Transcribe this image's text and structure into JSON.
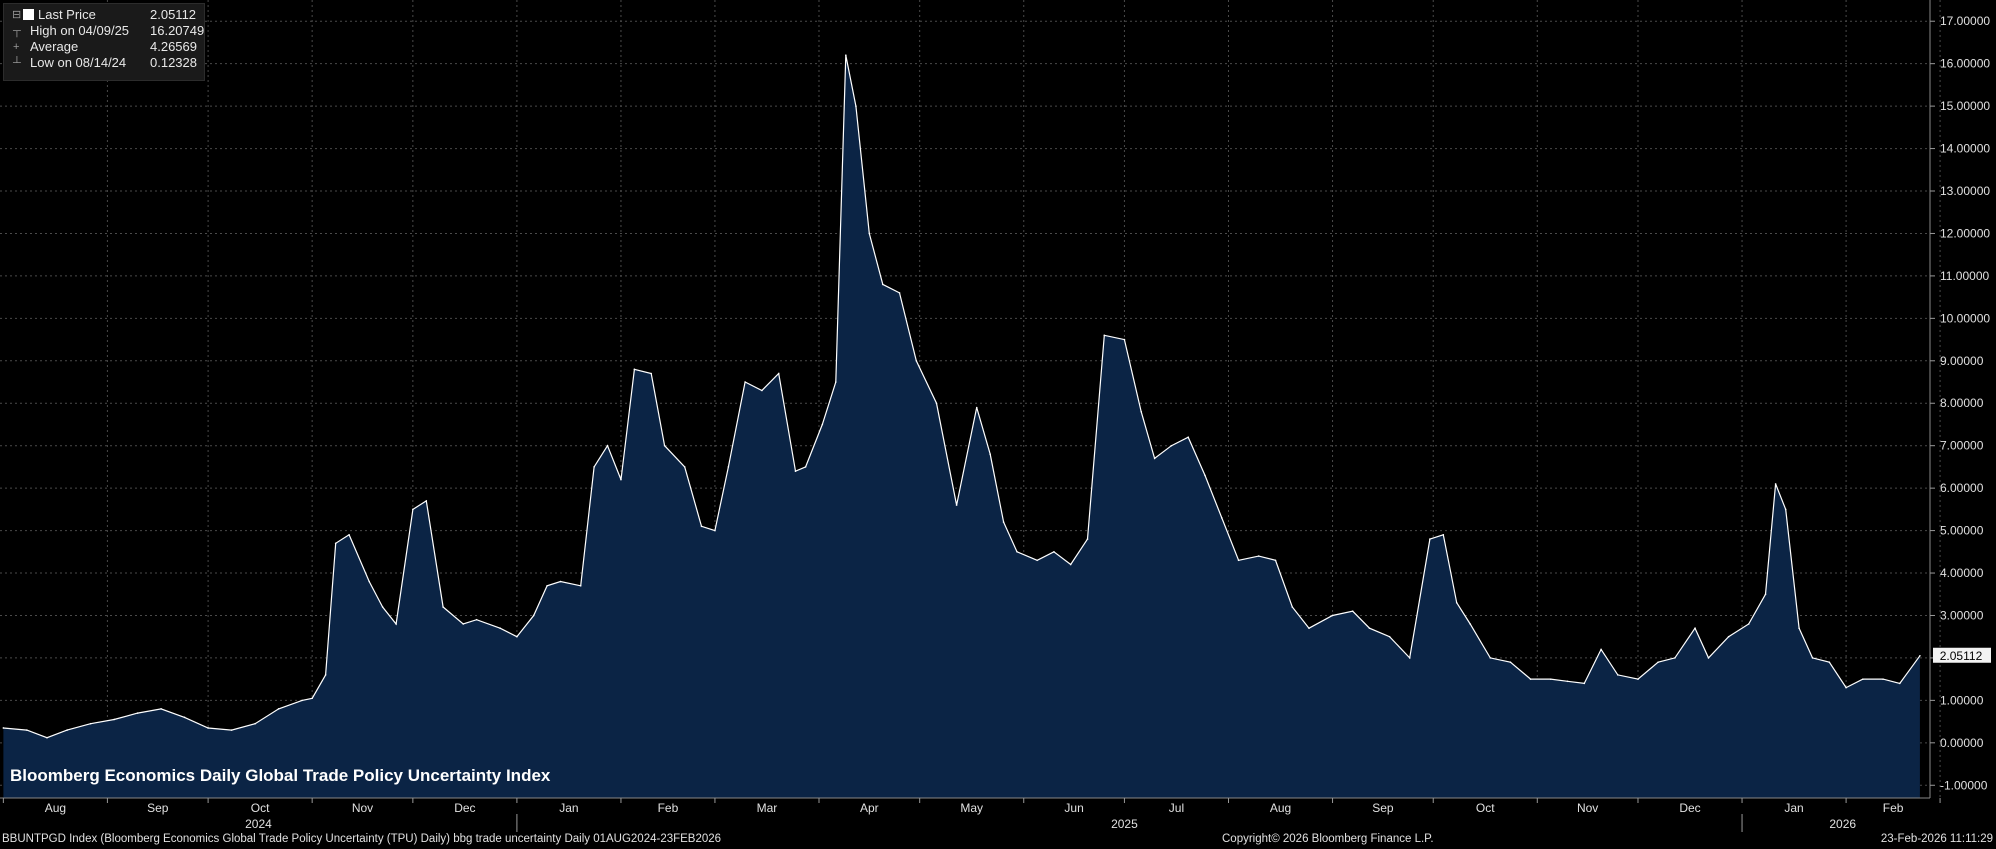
{
  "legend": {
    "last_price_label": "Last Price",
    "last_price_value": "2.05112",
    "high_label": "High on 04/09/25",
    "high_value": "16.20749",
    "average_label": "Average",
    "average_value": "4.26569",
    "low_label": "Low on 08/14/24",
    "low_value": "0.12328"
  },
  "footer": {
    "description": "BBUNTPGD Index (Bloomberg Economics Global Trade Policy Uncertainty (TPU) Daily) bbg trade uncertainty Daily 01AUG2024-23FEB2026",
    "copyright": "Copyright© 2026 Bloomberg Finance L.P.",
    "timestamp": "23-Feb-2026 11:11:29"
  },
  "colors": {
    "background": "#000000",
    "area_fill": "#0b2445",
    "line": "#ffffff",
    "grid": "#5a5a5a"
  },
  "chart_data": {
    "type": "area",
    "title": "Bloomberg Economics Daily Global Trade Policy Uncertainty Index",
    "ylim": [
      -1.3,
      17.5
    ],
    "yticks": [
      -1,
      0,
      1,
      2,
      3,
      4,
      5,
      6,
      7,
      8,
      9,
      10,
      11,
      12,
      13,
      14,
      15,
      16,
      17
    ],
    "ytick_labels": [
      "-1.00000",
      "0.00000",
      "1.00000",
      "2.00000",
      "3.00000",
      "4.00000",
      "5.00000",
      "6.00000",
      "7.00000",
      "8.00000",
      "9.00000",
      "10.00000",
      "11.00000",
      "12.00000",
      "13.00000",
      "14.00000",
      "15.00000",
      "16.00000",
      "17.00000"
    ],
    "last_value_label": "2.05112",
    "month_labels": [
      "Aug",
      "Sep",
      "Oct",
      "Nov",
      "Dec",
      "Jan",
      "Feb",
      "Mar",
      "Apr",
      "May",
      "Jun",
      "Jul",
      "Aug",
      "Sep",
      "Oct",
      "Nov",
      "Dec",
      "Jan",
      "Feb"
    ],
    "year_labels": [
      "2024",
      "2025",
      "2026"
    ],
    "grid": true,
    "x": [
      "2024-08-01",
      "2024-08-08",
      "2024-08-14",
      "2024-08-20",
      "2024-08-27",
      "2024-09-03",
      "2024-09-10",
      "2024-09-17",
      "2024-09-24",
      "2024-10-01",
      "2024-10-08",
      "2024-10-15",
      "2024-10-22",
      "2024-10-29",
      "2024-11-01",
      "2024-11-05",
      "2024-11-08",
      "2024-11-12",
      "2024-11-18",
      "2024-11-22",
      "2024-11-26",
      "2024-12-01",
      "2024-12-05",
      "2024-12-10",
      "2024-12-16",
      "2024-12-20",
      "2024-12-27",
      "2025-01-01",
      "2025-01-06",
      "2025-01-10",
      "2025-01-14",
      "2025-01-20",
      "2025-01-24",
      "2025-01-28",
      "2025-02-01",
      "2025-02-05",
      "2025-02-10",
      "2025-02-14",
      "2025-02-20",
      "2025-02-25",
      "2025-03-01",
      "2025-03-05",
      "2025-03-10",
      "2025-03-15",
      "2025-03-20",
      "2025-03-25",
      "2025-03-28",
      "2025-04-02",
      "2025-04-06",
      "2025-04-09",
      "2025-04-12",
      "2025-04-16",
      "2025-04-20",
      "2025-04-25",
      "2025-04-30",
      "2025-05-06",
      "2025-05-12",
      "2025-05-18",
      "2025-05-22",
      "2025-05-26",
      "2025-05-30",
      "2025-06-05",
      "2025-06-10",
      "2025-06-15",
      "2025-06-20",
      "2025-06-25",
      "2025-07-01",
      "2025-07-06",
      "2025-07-10",
      "2025-07-15",
      "2025-07-20",
      "2025-07-25",
      "2025-07-30",
      "2025-08-04",
      "2025-08-10",
      "2025-08-15",
      "2025-08-20",
      "2025-08-25",
      "2025-09-01",
      "2025-09-07",
      "2025-09-12",
      "2025-09-18",
      "2025-09-24",
      "2025-09-30",
      "2025-10-04",
      "2025-10-08",
      "2025-10-12",
      "2025-10-18",
      "2025-10-24",
      "2025-10-30",
      "2025-11-05",
      "2025-11-10",
      "2025-11-15",
      "2025-11-20",
      "2025-11-25",
      "2025-12-01",
      "2025-12-07",
      "2025-12-12",
      "2025-12-18",
      "2025-12-22",
      "2025-12-28",
      "2026-01-03",
      "2026-01-08",
      "2026-01-11",
      "2026-01-14",
      "2026-01-18",
      "2026-01-22",
      "2026-01-27",
      "2026-02-01",
      "2026-02-06",
      "2026-02-12",
      "2026-02-17",
      "2026-02-23"
    ],
    "values": [
      0.35,
      0.3,
      0.12,
      0.3,
      0.45,
      0.55,
      0.7,
      0.8,
      0.6,
      0.35,
      0.3,
      0.45,
      0.8,
      1.0,
      1.05,
      1.6,
      4.7,
      4.9,
      3.8,
      3.2,
      2.8,
      5.5,
      5.7,
      3.2,
      2.8,
      2.9,
      2.7,
      2.5,
      3.0,
      3.7,
      3.8,
      3.7,
      6.5,
      7.0,
      6.2,
      8.8,
      8.7,
      7.0,
      6.5,
      5.1,
      5.0,
      6.5,
      8.5,
      8.3,
      8.7,
      6.4,
      6.5,
      7.5,
      8.5,
      16.2,
      15.0,
      12.0,
      10.8,
      10.6,
      9.0,
      8.0,
      5.6,
      7.9,
      6.8,
      5.2,
      4.5,
      4.3,
      4.5,
      4.2,
      4.8,
      9.6,
      9.5,
      7.8,
      6.7,
      7.0,
      7.2,
      6.3,
      5.3,
      4.3,
      4.4,
      4.3,
      3.2,
      2.7,
      3.0,
      3.1,
      2.7,
      2.5,
      2.0,
      4.8,
      4.9,
      3.3,
      2.8,
      2.0,
      1.9,
      1.5,
      1.5,
      1.45,
      1.4,
      2.2,
      1.6,
      1.5,
      1.9,
      2.0,
      2.7,
      2.0,
      2.5,
      2.8,
      3.5,
      6.1,
      5.5,
      2.7,
      2.0,
      1.9,
      1.3,
      1.5,
      1.5,
      1.4,
      2.05112
    ]
  }
}
